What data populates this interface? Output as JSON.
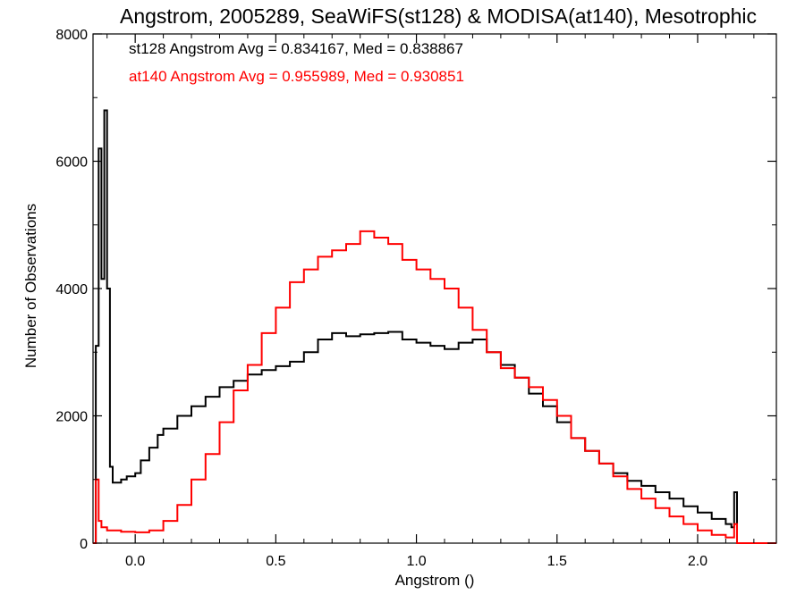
{
  "chart_data": {
    "type": "line",
    "step": true,
    "title": "Angstrom, 2005289, SeaWiFS(st128) & MODISA(at140), Mesotrophic",
    "xlabel": "Angstrom ()",
    "ylabel": "Number of Observations",
    "xlim": [
      -0.15,
      2.28
    ],
    "ylim": [
      0,
      8000
    ],
    "xticks": [
      0.0,
      0.5,
      1.0,
      1.5,
      2.0
    ],
    "xtick_labels": [
      "0.0",
      "0.5",
      "1.0",
      "1.5",
      "2.0"
    ],
    "yticks": [
      0,
      2000,
      4000,
      6000,
      8000
    ],
    "ytick_labels": [
      "0",
      "2000",
      "4000",
      "6000",
      "8000"
    ],
    "grid": false,
    "annotations": [
      {
        "text": "st128 Angstrom Avg = 0.834167, Med = 0.838867",
        "color": "#000000"
      },
      {
        "text": "at140 Angstrom Avg = 0.955989, Med = 0.930851",
        "color": "#ff0000"
      }
    ],
    "series": [
      {
        "color": "#000000",
        "x": [
          -0.15,
          -0.14,
          -0.13,
          -0.12,
          -0.11,
          -0.1,
          -0.09,
          -0.08,
          -0.05,
          -0.03,
          0.0,
          0.02,
          0.05,
          0.08,
          0.1,
          0.15,
          0.2,
          0.25,
          0.3,
          0.35,
          0.4,
          0.45,
          0.5,
          0.55,
          0.6,
          0.65,
          0.7,
          0.75,
          0.8,
          0.85,
          0.9,
          0.95,
          1.0,
          1.05,
          1.1,
          1.15,
          1.2,
          1.25,
          1.3,
          1.35,
          1.4,
          1.45,
          1.5,
          1.55,
          1.6,
          1.65,
          1.7,
          1.75,
          1.8,
          1.85,
          1.9,
          1.95,
          2.0,
          2.05,
          2.1,
          2.12,
          2.13,
          2.14,
          2.15,
          2.28
        ],
        "y": [
          0,
          3100,
          6200,
          4150,
          6800,
          4000,
          1200,
          950,
          1000,
          1050,
          1100,
          1300,
          1500,
          1700,
          1800,
          2000,
          2150,
          2300,
          2450,
          2550,
          2650,
          2720,
          2780,
          2850,
          3000,
          3200,
          3300,
          3250,
          3280,
          3300,
          3320,
          3200,
          3150,
          3100,
          3050,
          3150,
          3200,
          3000,
          2800,
          2600,
          2350,
          2150,
          1900,
          1650,
          1450,
          1250,
          1100,
          980,
          900,
          800,
          700,
          580,
          480,
          380,
          300,
          250,
          800,
          0,
          0,
          0
        ]
      },
      {
        "color": "#ff0000",
        "x": [
          -0.15,
          -0.14,
          -0.13,
          -0.12,
          -0.1,
          -0.05,
          0.0,
          0.05,
          0.1,
          0.15,
          0.2,
          0.25,
          0.3,
          0.35,
          0.4,
          0.45,
          0.5,
          0.55,
          0.6,
          0.65,
          0.7,
          0.75,
          0.8,
          0.85,
          0.9,
          0.95,
          1.0,
          1.05,
          1.1,
          1.15,
          1.2,
          1.25,
          1.3,
          1.35,
          1.4,
          1.45,
          1.5,
          1.55,
          1.6,
          1.65,
          1.7,
          1.75,
          1.8,
          1.85,
          1.9,
          1.95,
          2.0,
          2.05,
          2.1,
          2.13,
          2.14,
          2.15,
          2.28
        ],
        "y": [
          0,
          1000,
          350,
          250,
          200,
          180,
          170,
          200,
          350,
          600,
          1000,
          1400,
          1900,
          2400,
          2800,
          3300,
          3700,
          4100,
          4300,
          4500,
          4600,
          4700,
          4900,
          4800,
          4700,
          4450,
          4300,
          4150,
          4000,
          3700,
          3350,
          3000,
          2750,
          2600,
          2450,
          2250,
          2000,
          1650,
          1450,
          1250,
          1050,
          850,
          700,
          550,
          420,
          300,
          200,
          130,
          90,
          300,
          0,
          0,
          0
        ]
      }
    ]
  }
}
